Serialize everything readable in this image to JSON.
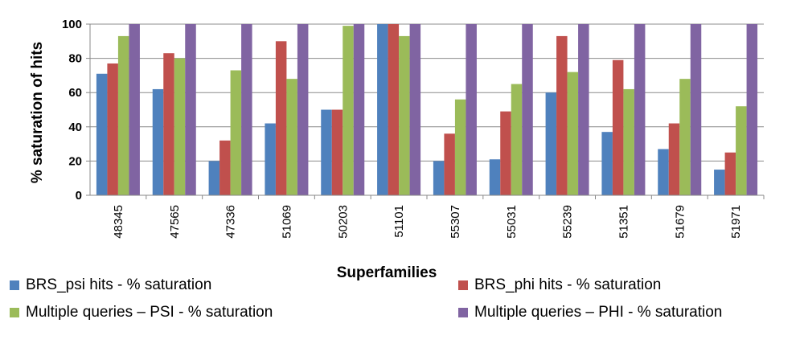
{
  "chart_data": {
    "type": "bar",
    "title": "",
    "xlabel": "Superfamilies",
    "ylabel": "% saturation  of hits",
    "ylim": [
      0,
      100
    ],
    "yticks": [
      0,
      20,
      40,
      60,
      80,
      100
    ],
    "grid": true,
    "legend_position": "bottom",
    "categories": [
      "48345",
      "47565",
      "47336",
      "51069",
      "50203",
      "51101",
      "55307",
      "55031",
      "55239",
      "51351",
      "51679",
      "51971"
    ],
    "series": [
      {
        "name": "BRS_psi hits - % saturation",
        "color": "#4F81BD",
        "values": [
          71,
          62,
          20,
          42,
          50,
          100,
          20,
          21,
          60,
          37,
          27,
          15
        ]
      },
      {
        "name": "BRS_phi hits - % saturation",
        "color": "#C0504D",
        "values": [
          77,
          83,
          32,
          90,
          50,
          100,
          36,
          49,
          93,
          79,
          42,
          25
        ]
      },
      {
        "name": "Multiple queries – PSI - % saturation",
        "color": "#9BBB59",
        "values": [
          93,
          80,
          73,
          68,
          99,
          93,
          56,
          65,
          72,
          62,
          68,
          52
        ]
      },
      {
        "name": "Multiple queries – PHI - % saturation",
        "color": "#8064A2",
        "values": [
          100,
          100,
          100,
          100,
          100,
          100,
          100,
          100,
          100,
          100,
          100,
          100
        ]
      }
    ]
  }
}
